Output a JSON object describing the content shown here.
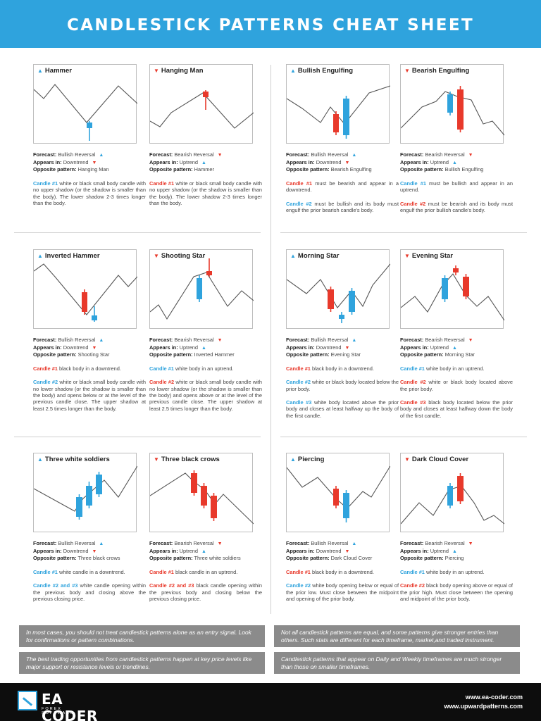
{
  "header": {
    "title": "CANDLESTICK PATTERNS CHEAT SHEET"
  },
  "colors": {
    "bull": "#2fa3dd",
    "bear": "#e8392b",
    "header_bg": "#2fa3dd",
    "note_bg": "#8b8b8b",
    "footer_bg": "#0d0d0d"
  },
  "labels": {
    "forecast": "Forecast:",
    "appears": "Appears in:",
    "opposite": "Opposite pattern:"
  },
  "patterns": [
    {
      "title": "Hammer",
      "title_icon": "up-triangle-icon",
      "forecast": "Bullish Reversal",
      "forecast_icon": "up-triangle-icon",
      "appears": "Downtrend",
      "appears_icon": "down-triangle-icon",
      "opposite": "Hanging Man",
      "paragraphs": [
        {
          "label": "Candle #1",
          "label_color": "blue",
          "text": " white or black small body candle with no upper shadow (or the shadow is smaller than the body). The lower shadow 2-3 times longer than the body."
        }
      ]
    },
    {
      "title": "Hanging Man",
      "title_icon": "down-triangle-icon",
      "forecast": "Bearish Reversal",
      "forecast_icon": "down-triangle-icon",
      "appears": "Uptrend",
      "appears_icon": "up-triangle-icon",
      "opposite": "Hammer",
      "paragraphs": [
        {
          "label": "Candle #1",
          "label_color": "red",
          "text": " white or black small body candle with no upper shadow (or the shadow is smaller than the body). The lower shadow 2-3 times longer than the body."
        }
      ]
    },
    {
      "title": "Bullish Engulfing",
      "title_icon": "up-triangle-icon",
      "forecast": "Bullish Reversal",
      "forecast_icon": "up-triangle-icon",
      "appears": "Downtrend",
      "appears_icon": "down-triangle-icon",
      "opposite": "Bearish Engulfing",
      "paragraphs": [
        {
          "label": "Candle #1",
          "label_color": "red",
          "text": " must be bearish and appear in a downtrend."
        },
        {
          "label": "Candle #2",
          "label_color": "blue",
          "text": " must be bullish and its body must engulf the prior bearish candle's body."
        }
      ]
    },
    {
      "title": "Bearish Engulfing",
      "title_icon": "down-triangle-icon",
      "forecast": "Bearish Reversal",
      "forecast_icon": "down-triangle-icon",
      "appears": "Uptrend",
      "appears_icon": "up-triangle-icon",
      "opposite": "Bullish Engulfing",
      "paragraphs": [
        {
          "label": "Candle #1",
          "label_color": "blue",
          "text": " must be bullish and appear in an uptrend."
        },
        {
          "label": "Candle #2",
          "label_color": "red",
          "text": " must be bearish and its body must engulf the prior bullish candle's body."
        }
      ]
    },
    {
      "title": "Inverted Hammer",
      "title_icon": "up-triangle-icon",
      "forecast": "Bullish Reversal",
      "forecast_icon": "up-triangle-icon",
      "appears": "Downtrend",
      "appears_icon": "down-triangle-icon",
      "opposite": "Shooting Star",
      "paragraphs": [
        {
          "label": "Candle #1",
          "label_color": "red",
          "text": " black body in a downtrend."
        },
        {
          "label": "Candle #2",
          "label_color": "blue",
          "text": " white or black small body candle with no lower shadow (or the shadow is smaller than the body) and opens below or at the level of the previous candle close. The upper shadow at least 2.5 times longer than the body."
        }
      ]
    },
    {
      "title": "Shooting Star",
      "title_icon": "down-triangle-icon",
      "forecast": "Bearish Reversal",
      "forecast_icon": "down-triangle-icon",
      "appears": "Uptrend",
      "appears_icon": "up-triangle-icon",
      "opposite": "Inverted Hammer",
      "paragraphs": [
        {
          "label": "Candle #1",
          "label_color": "blue",
          "text": " white body in an uptrend."
        },
        {
          "label": "Candle #2",
          "label_color": "red",
          "text": " white or black small body candle with no lower shadow (or the shadow is smaller than the body) and opens above or at the level of the previous candle close. The upper shadow at least 2.5 times longer than the body."
        }
      ]
    },
    {
      "title": "Morning Star",
      "title_icon": "up-triangle-icon",
      "forecast": "Bullish Reversal",
      "forecast_icon": "up-triangle-icon",
      "appears": "Downtrend",
      "appears_icon": "down-triangle-icon",
      "opposite": "Evening Star",
      "paragraphs": [
        {
          "label": "Candle #1",
          "label_color": "red",
          "text": " black body in a downtrend."
        },
        {
          "label": "Candle #2",
          "label_color": "blue",
          "text": " white or black body located below the prior body."
        },
        {
          "label": "Candle #3",
          "label_color": "blue",
          "text": " white body located above the prior body and closes at least halfway up the body of the first candle."
        }
      ]
    },
    {
      "title": "Evening Star",
      "title_icon": "down-triangle-icon",
      "forecast": "Bearish Reversal",
      "forecast_icon": "down-triangle-icon",
      "appears": "Uptrend",
      "appears_icon": "up-triangle-icon",
      "opposite": "Morning Star",
      "paragraphs": [
        {
          "label": "Candle #1",
          "label_color": "blue",
          "text": " white body in an uptrend."
        },
        {
          "label": "Candle #2",
          "label_color": "red",
          "text": " white or black body located above the prior body."
        },
        {
          "label": "Candle #3",
          "label_color": "red",
          "text": " black body located below the prior body and closes at least halfway down the body of the first candle."
        }
      ]
    },
    {
      "title": "Three white soldiers",
      "title_icon": "up-triangle-icon",
      "forecast": "Bullish Reversal",
      "forecast_icon": "up-triangle-icon",
      "appears": "Downtrend",
      "appears_icon": "down-triangle-icon",
      "opposite": "Three black crows",
      "paragraphs": [
        {
          "label": "Candle #1",
          "label_color": "blue",
          "text": " white candle in a downtrend."
        },
        {
          "label": "Candle #2 and #3",
          "label_color": "blue",
          "text": " white candle opening within the previous body and closing above the previous closing price."
        }
      ]
    },
    {
      "title": "Three black crows",
      "title_icon": "down-triangle-icon",
      "forecast": "Bearish Reversal",
      "forecast_icon": "down-triangle-icon",
      "appears": "Uptrend",
      "appears_icon": "up-triangle-icon",
      "opposite": "Three white soldiers",
      "paragraphs": [
        {
          "label": "Candle #1",
          "label_color": "red",
          "text": " black candle in an uptrend."
        },
        {
          "label": "Candle #2 and #3",
          "label_color": "red",
          "text": " black candle opening within the previous body and closing below the previous closing price."
        }
      ]
    },
    {
      "title": "Piercing",
      "title_icon": "up-triangle-icon",
      "forecast": "Bullish Reversal",
      "forecast_icon": "up-triangle-icon",
      "appears": "Downtrend",
      "appears_icon": "down-triangle-icon",
      "opposite": "Dark Cloud Cover",
      "paragraphs": [
        {
          "label": "Candle #1",
          "label_color": "red",
          "text": " black body in a downtrend."
        },
        {
          "label": "Candle #2",
          "label_color": "blue",
          "text": " white body opening below or equal of the prior low. Must close between the midpoint and opening of the prior body."
        }
      ]
    },
    {
      "title": "Dark Cloud Cover",
      "title_icon": "down-triangle-icon",
      "forecast": "Bearish Reversal",
      "forecast_icon": "down-triangle-icon",
      "appears": "Uptrend",
      "appears_icon": "up-triangle-icon",
      "opposite": "Piercing",
      "paragraphs": [
        {
          "label": "Candle #1",
          "label_color": "blue",
          "text": " white body in an uptrend."
        },
        {
          "label": "Candle #2",
          "label_color": "red",
          "text": " black body opening above or equal of the prior high. Must close between the opening and midpoint of the prior body."
        }
      ]
    }
  ],
  "notes": [
    "In most cases, you should not treat candlestick patterns alone as an entry signal. Look for confirmations or pattern combinations.",
    "Not all candlestick patterns are equal, and some patterns give stronger entries than others. Such stats are different for each timeframe, market,and traded instrument.",
    "The best trading opportunities from candlestick patterns happen at key price levels like major support or resistance levels or trendlines.",
    "Candlestick patterns that appear on Daily and Weekly timeframes are much stronger than those on smaller timeframes."
  ],
  "footer": {
    "logo_text": "EA CODER",
    "logo_sub": "FOREX SOFTWARE",
    "url1": "www.ea-coder.com",
    "url2": "www.upwardpatterns.com"
  }
}
